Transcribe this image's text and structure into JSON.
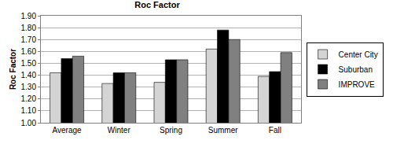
{
  "chart_data": {
    "type": "bar",
    "title": "Roc Factor",
    "y_label": "Roc Factor",
    "categories": [
      "Average",
      "Winter",
      "Spring",
      "Summer",
      "Fall"
    ],
    "series": [
      {
        "name": "Center City",
        "color": "#d4d4d4",
        "values": [
          1.42,
          1.33,
          1.34,
          1.62,
          1.39
        ]
      },
      {
        "name": "Suburban",
        "color": "#000000",
        "values": [
          1.54,
          1.42,
          1.53,
          1.78,
          1.43
        ]
      },
      {
        "name": "IMPROVE",
        "color": "#808080",
        "values": [
          1.56,
          1.42,
          1.53,
          1.7,
          1.59
        ]
      }
    ],
    "ylim": [
      1.0,
      1.9
    ],
    "yticks": [
      {
        "value": 1.0,
        "label": "1.00"
      },
      {
        "value": 1.1,
        "label": "1.10"
      },
      {
        "value": 1.2,
        "label": "1.20"
      },
      {
        "value": 1.3,
        "label": "1.30"
      },
      {
        "value": 1.4,
        "label": "1.40"
      },
      {
        "value": 1.5,
        "label": "1.50"
      },
      {
        "value": 1.6,
        "label": "1.60"
      },
      {
        "value": 1.7,
        "label": "1.70"
      },
      {
        "value": 1.8,
        "label": "1.80"
      },
      {
        "value": 1.9,
        "label": "1.90"
      }
    ],
    "grid": true,
    "legend": "right"
  }
}
